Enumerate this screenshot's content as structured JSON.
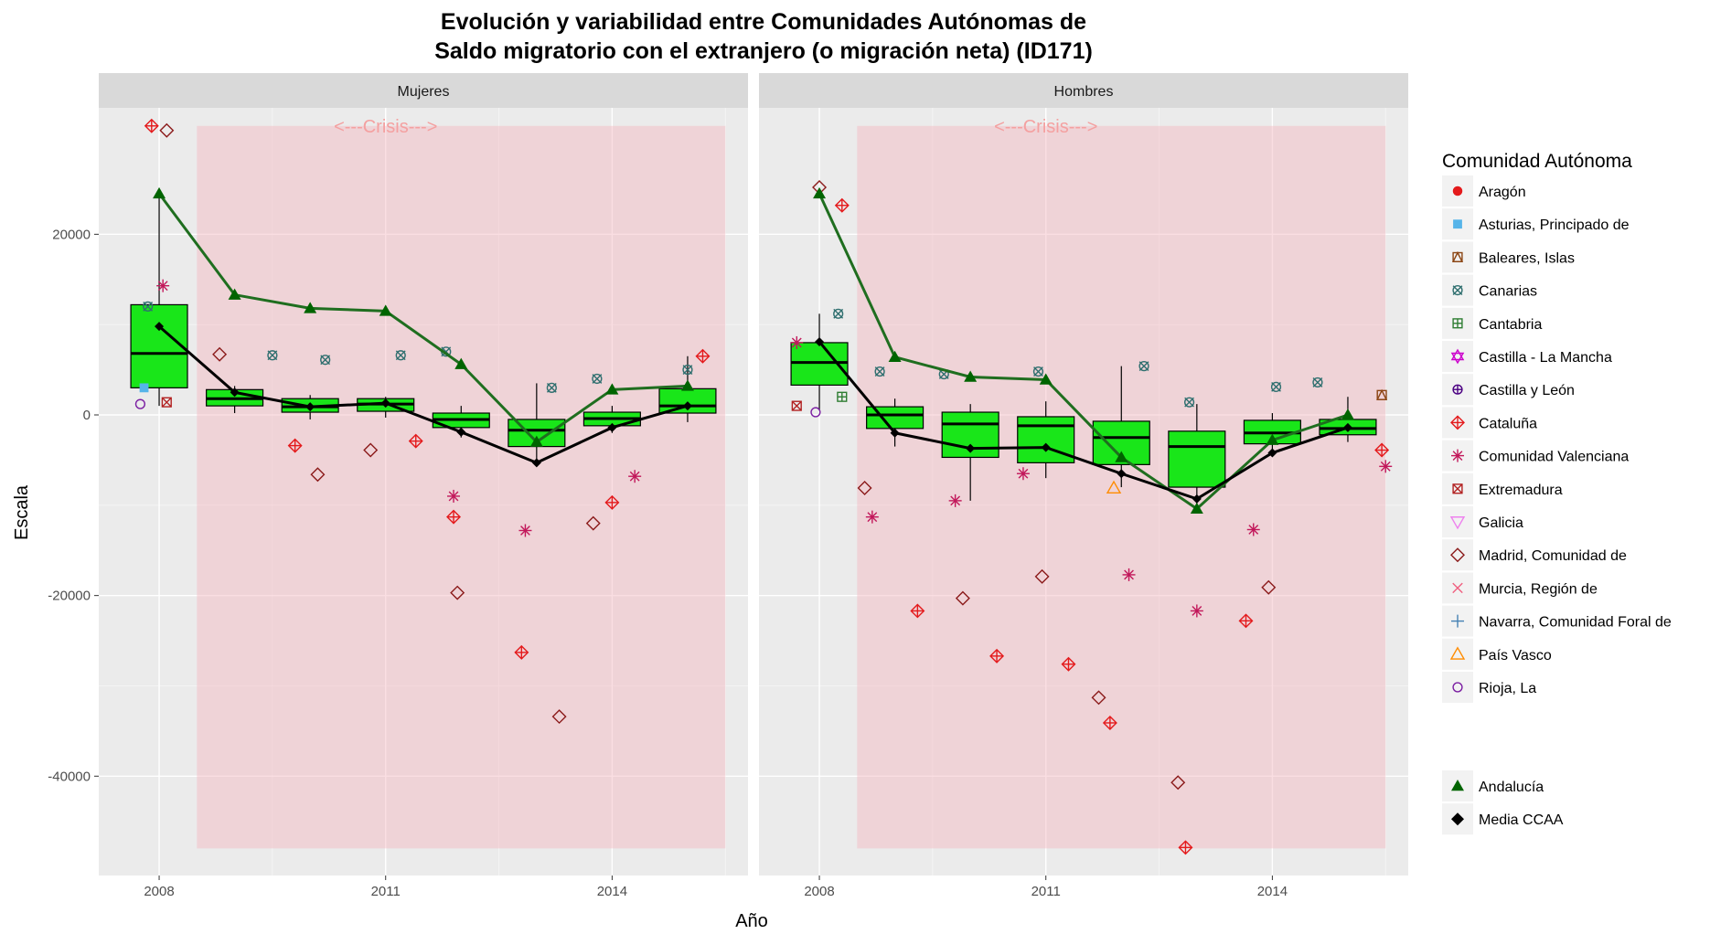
{
  "chart_data": {
    "type": "box",
    "title_line1": "Evolución y variabilidad entre Comunidades Autónomas de",
    "title_line2": "Saldo migratorio con el extranjero (o migración neta) (ID171)",
    "xlabel": "Año",
    "ylabel": "Escala",
    "ylim": [
      -51000,
      34000
    ],
    "xlim": [
      2007.2,
      2015.8
    ],
    "y_ticks": [
      -40000,
      -20000,
      0,
      20000
    ],
    "y_tick_labels": [
      "-40000",
      "-20000",
      "0",
      "20000"
    ],
    "x_ticks": [
      2008,
      2011,
      2014
    ],
    "x_tick_labels": [
      "2008",
      "2011",
      "2014"
    ],
    "crisis_band": {
      "label": "<---Crisis--->",
      "x_from": 2008.5,
      "x_to": 2015.5,
      "y_from": -48000,
      "y_to": 32000
    },
    "legend_title": "Comunidad Autónoma",
    "legend_entries": [
      {
        "label": "Aragón",
        "shape": "dot",
        "color": "#e41a1c"
      },
      {
        "label": "Asturias, Principado de",
        "shape": "square",
        "color": "#56b4e9"
      },
      {
        "label": "Baleares, Islas",
        "shape": "square-cross",
        "color": "#8b4513"
      },
      {
        "label": "Canarias",
        "shape": "circle-x",
        "color": "#2f6f6f"
      },
      {
        "label": "Cantabria",
        "shape": "square-plus",
        "color": "#2e7d32"
      },
      {
        "label": "Castilla - La Mancha",
        "shape": "star",
        "color": "#cc00cc"
      },
      {
        "label": "Castilla y León",
        "shape": "circle-plus",
        "color": "#4b0082"
      },
      {
        "label": "Cataluña",
        "shape": "diamond-plus",
        "color": "#e41a1c"
      },
      {
        "label": "Comunidad Valenciana",
        "shape": "asterisk",
        "color": "#c2185b"
      },
      {
        "label": "Extremadura",
        "shape": "square-x",
        "color": "#b22222"
      },
      {
        "label": "Galicia",
        "shape": "triangle-down",
        "color": "#ee82ee"
      },
      {
        "label": "Madrid, Comunidad de",
        "shape": "diamond",
        "color": "#8b1a1a"
      },
      {
        "label": "Murcia, Región de",
        "shape": "x",
        "color": "#f06080"
      },
      {
        "label": "Navarra, Comunidad Foral de",
        "shape": "plus",
        "color": "#4682b4"
      },
      {
        "label": "País Vasco",
        "shape": "triangle",
        "color": "#ff8c00"
      },
      {
        "label": "Rioja, La",
        "shape": "circle",
        "color": "#7b1fa2"
      }
    ],
    "legend_lines": [
      {
        "label": "Andalucía",
        "shape": "triangle-filled",
        "color": "#006400"
      },
      {
        "label": "Media CCAA",
        "shape": "diamond-filled",
        "color": "#000000"
      }
    ],
    "colors": {
      "box_fill": "#19e619",
      "andalucia": "#1f6e1f",
      "media": "#000000",
      "crisis_fill": "#f4b6be",
      "panel_bg": "#ebebeb",
      "strip_bg": "#d9d9d9"
    },
    "panels": [
      {
        "name": "Mujeres",
        "boxes": [
          {
            "x": 2008,
            "q1": 3000,
            "median": 6800,
            "q3": 12200,
            "lo": 1000,
            "hi": 24500
          },
          {
            "x": 2009,
            "q1": 1000,
            "median": 1800,
            "q3": 2800,
            "lo": 200,
            "hi": 3200
          },
          {
            "x": 2010,
            "q1": 300,
            "median": 900,
            "q3": 1800,
            "lo": -500,
            "hi": 2200
          },
          {
            "x": 2011,
            "q1": 400,
            "median": 1200,
            "q3": 1800,
            "lo": -300,
            "hi": 2000
          },
          {
            "x": 2012,
            "q1": -1400,
            "median": -500,
            "q3": 200,
            "lo": -2500,
            "hi": 1000
          },
          {
            "x": 2013,
            "q1": -3500,
            "median": -1700,
            "q3": -500,
            "lo": -5500,
            "hi": 3500
          },
          {
            "x": 2014,
            "q1": -1200,
            "median": -400,
            "q3": 300,
            "lo": -2000,
            "hi": 1000
          },
          {
            "x": 2015,
            "q1": 200,
            "median": 1000,
            "q3": 2900,
            "lo": -800,
            "hi": 6500
          }
        ],
        "andalucia": [
          24500,
          13300,
          11800,
          11500,
          5600,
          -3000,
          2800,
          3200
        ],
        "media": [
          9800,
          2500,
          900,
          1300,
          -1900,
          -5300,
          -1400,
          1000
        ],
        "outliers": [
          [
            2007.9,
            32000,
            "diamond-plus"
          ],
          [
            2008.1,
            31500,
            "diamond"
          ],
          [
            2008.05,
            14300,
            "asterisk"
          ],
          [
            2007.85,
            12000,
            "circle-x"
          ],
          [
            2008.8,
            6700,
            "diamond"
          ],
          [
            2009.5,
            6600,
            "circle-x"
          ],
          [
            2010.2,
            6100,
            "circle-x"
          ],
          [
            2010.1,
            -6600,
            "diamond"
          ],
          [
            2009.8,
            -3400,
            "diamond-plus"
          ],
          [
            2011.2,
            6600,
            "circle-x"
          ],
          [
            2010.8,
            -3900,
            "diamond"
          ],
          [
            2011.4,
            -2900,
            "diamond-plus"
          ],
          [
            2011.8,
            7000,
            "circle-x"
          ],
          [
            2011.9,
            -9000,
            "asterisk"
          ],
          [
            2011.9,
            -11300,
            "diamond-plus"
          ],
          [
            2011.95,
            -19700,
            "diamond"
          ],
          [
            2012.8,
            -26300,
            "diamond-plus"
          ],
          [
            2012.85,
            -12800,
            "asterisk"
          ],
          [
            2013.3,
            -33400,
            "diamond"
          ],
          [
            2013.2,
            3000,
            "circle-x"
          ],
          [
            2013.8,
            4000,
            "circle-x"
          ],
          [
            2013.75,
            -12000,
            "diamond"
          ],
          [
            2014.0,
            -9700,
            "diamond-plus"
          ],
          [
            2014.3,
            -6800,
            "asterisk"
          ],
          [
            2015.0,
            5000,
            "circle-x"
          ],
          [
            2015.2,
            6500,
            "diamond-plus"
          ],
          [
            2007.75,
            1200,
            "circle"
          ],
          [
            2007.8,
            3000,
            "square"
          ],
          [
            2008.1,
            1400,
            "square-x"
          ]
        ]
      },
      {
        "name": "Hombres",
        "boxes": [
          {
            "x": 2008,
            "q1": 3300,
            "median": 5800,
            "q3": 8000,
            "lo": 500,
            "hi": 11200
          },
          {
            "x": 2009,
            "q1": -1500,
            "median": 0,
            "q3": 900,
            "lo": -3500,
            "hi": 1800
          },
          {
            "x": 2010,
            "q1": -4700,
            "median": -1000,
            "q3": 300,
            "lo": -9500,
            "hi": 1200
          },
          {
            "x": 2011,
            "q1": -5300,
            "median": -1200,
            "q3": -200,
            "lo": -7000,
            "hi": 1500
          },
          {
            "x": 2012,
            "q1": -5500,
            "median": -2500,
            "q3": -700,
            "lo": -8000,
            "hi": 5400
          },
          {
            "x": 2013,
            "q1": -8000,
            "median": -3500,
            "q3": -1800,
            "lo": -10500,
            "hi": 1200
          },
          {
            "x": 2014,
            "q1": -3200,
            "median": -2000,
            "q3": -600,
            "lo": -4500,
            "hi": 200
          },
          {
            "x": 2015,
            "q1": -2200,
            "median": -1500,
            "q3": -500,
            "lo": -3000,
            "hi": 2000
          }
        ],
        "andalucia": [
          24500,
          6400,
          4200,
          3900,
          -4700,
          -10400,
          -2800,
          0
        ],
        "media": [
          8100,
          -2000,
          -3700,
          -3600,
          -6500,
          -9300,
          -4200,
          -1400
        ],
        "outliers": [
          [
            2008.0,
            25200,
            "diamond"
          ],
          [
            2008.3,
            23200,
            "diamond-plus"
          ],
          [
            2008.25,
            11200,
            "circle-x"
          ],
          [
            2007.7,
            8000,
            "asterisk"
          ],
          [
            2008.6,
            -8100,
            "diamond"
          ],
          [
            2008.7,
            -11300,
            "asterisk"
          ],
          [
            2009.3,
            -21700,
            "diamond-plus"
          ],
          [
            2009.8,
            -9500,
            "asterisk"
          ],
          [
            2009.9,
            -20300,
            "diamond"
          ],
          [
            2010.35,
            -26700,
            "diamond-plus"
          ],
          [
            2010.7,
            -6500,
            "asterisk"
          ],
          [
            2010.95,
            -17900,
            "diamond"
          ],
          [
            2011.3,
            -27600,
            "diamond-plus"
          ],
          [
            2011.7,
            -31300,
            "diamond"
          ],
          [
            2011.85,
            -34100,
            "diamond-plus"
          ],
          [
            2012.1,
            -17700,
            "asterisk"
          ],
          [
            2012.3,
            5400,
            "circle-x"
          ],
          [
            2012.75,
            -40700,
            "diamond"
          ],
          [
            2012.85,
            -47900,
            "diamond-plus"
          ],
          [
            2013.0,
            -21700,
            "asterisk"
          ],
          [
            2013.65,
            -22800,
            "diamond-plus"
          ],
          [
            2013.75,
            -12700,
            "asterisk"
          ],
          [
            2013.95,
            -19100,
            "diamond"
          ],
          [
            2014.6,
            3600,
            "circle-x"
          ],
          [
            2014.05,
            3100,
            "circle-x"
          ],
          [
            2015.45,
            -3900,
            "diamond-plus"
          ],
          [
            2015.5,
            -5700,
            "asterisk"
          ],
          [
            2015.45,
            2200,
            "square-cross"
          ],
          [
            2007.7,
            1000,
            "square-x"
          ],
          [
            2007.95,
            300,
            "circle"
          ],
          [
            2008.3,
            2000,
            "square-plus"
          ],
          [
            2008.8,
            4800,
            "circle-x"
          ],
          [
            2009.65,
            4500,
            "circle-x"
          ],
          [
            2010.9,
            4800,
            "circle-x"
          ],
          [
            2011.9,
            -8100,
            "triangle"
          ],
          [
            2012.9,
            1400,
            "circle-x"
          ]
        ]
      }
    ]
  }
}
